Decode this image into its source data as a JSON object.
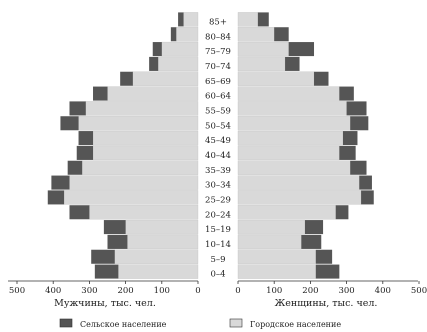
{
  "chart_data": {
    "type": "bar",
    "subtype": "population-pyramid",
    "categories": [
      "0–4",
      "5–9",
      "10–14",
      "15–19",
      "20–24",
      "25–29",
      "30–34",
      "35–39",
      "40–44",
      "45–49",
      "50–54",
      "55–59",
      "60–64",
      "65–69",
      "70–74",
      "75–79",
      "80–84",
      "85+"
    ],
    "series": [
      {
        "name": "Городское население",
        "color": "#d9d9d9",
        "men": [
          220,
          230,
          195,
          200,
          300,
          370,
          355,
          320,
          290,
          290,
          330,
          310,
          250,
          180,
          110,
          100,
          60,
          40
        ],
        "women": [
          215,
          215,
          175,
          185,
          270,
          340,
          335,
          310,
          280,
          290,
          310,
          300,
          280,
          210,
          130,
          140,
          100,
          55
        ]
      },
      {
        "name": "Сельское население",
        "color": "#555555",
        "men": [
          65,
          65,
          55,
          60,
          55,
          45,
          50,
          40,
          45,
          40,
          50,
          45,
          40,
          35,
          25,
          25,
          15,
          15
        ],
        "women": [
          65,
          45,
          55,
          50,
          35,
          35,
          35,
          45,
          45,
          40,
          50,
          55,
          40,
          40,
          40,
          70,
          40,
          30
        ]
      }
    ],
    "left_axis": {
      "label": "Мужчины, тыс. чел.",
      "ticks": [
        500,
        400,
        300,
        200,
        100,
        0
      ]
    },
    "right_axis": {
      "label": "Женщины, тыс. чел.",
      "ticks": [
        0,
        100,
        200,
        300,
        400,
        500
      ]
    },
    "xlim": [
      0,
      500
    ],
    "legend_position": "bottom"
  }
}
